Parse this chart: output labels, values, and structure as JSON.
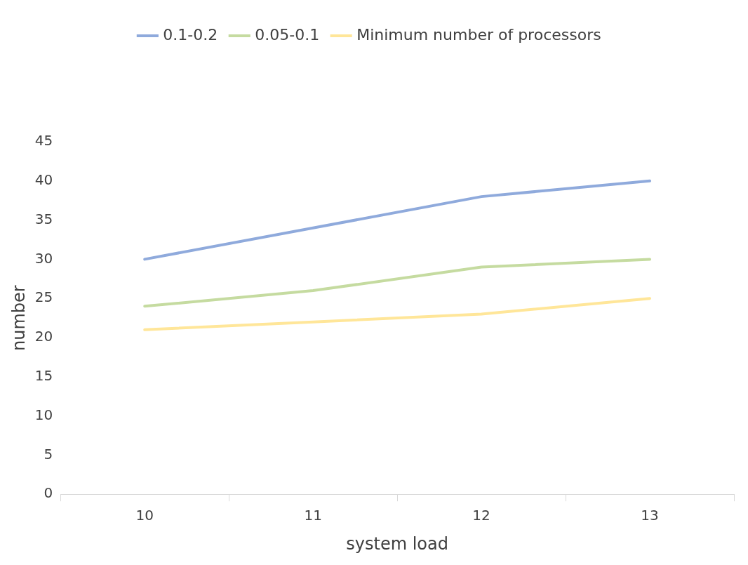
{
  "chart_data": {
    "type": "line",
    "xlabel": "system load",
    "ylabel": "number",
    "categories": [
      "10",
      "11",
      "12",
      "13"
    ],
    "series": [
      {
        "name": "0.1-0.2",
        "color": "#8faadc",
        "values": [
          30,
          34,
          38,
          40
        ]
      },
      {
        "name": "0.05-0.1",
        "color": "#c5dba0",
        "values": [
          24,
          26,
          29,
          30
        ]
      },
      {
        "name": "Minimum number of processors",
        "color": "#ffe699",
        "values": [
          21,
          22,
          23,
          25
        ]
      }
    ],
    "ylim": [
      0,
      45
    ],
    "yticks": [
      0,
      5,
      10,
      15,
      20,
      25,
      30,
      35,
      40,
      45
    ],
    "legend": "top",
    "marker": "none",
    "line_style": "solid"
  }
}
